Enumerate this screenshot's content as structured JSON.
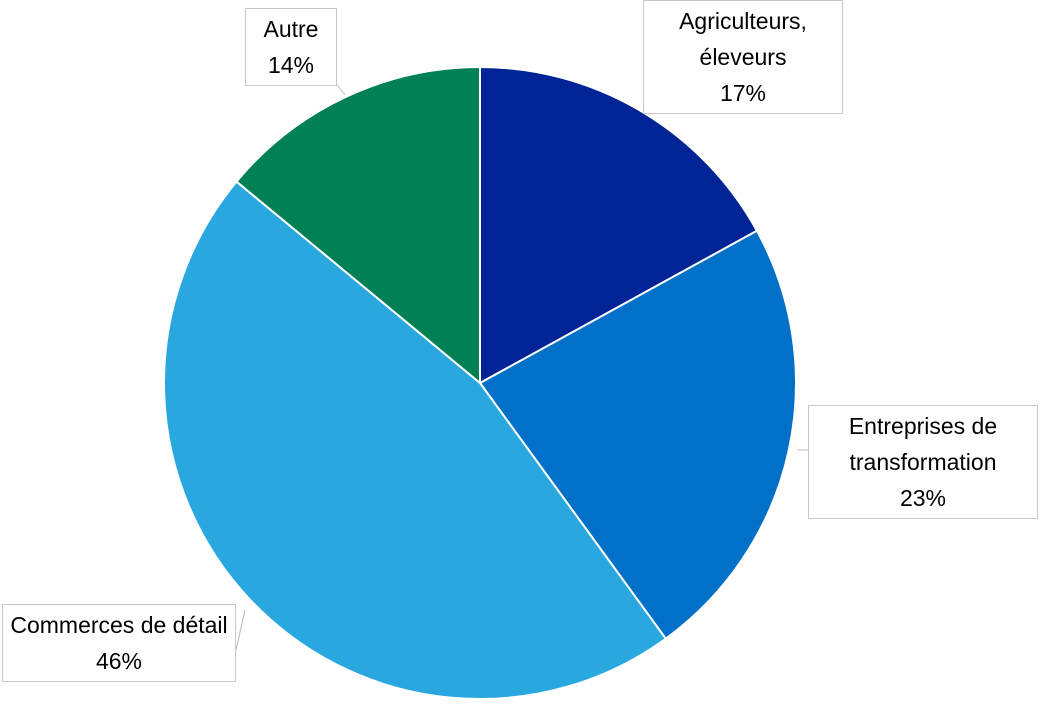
{
  "chart_data": {
    "type": "pie",
    "categories": [
      "Agriculteurs, éleveurs",
      "Entreprises de transformation",
      "Commerces de détail",
      "Autre"
    ],
    "values": [
      17,
      23,
      46,
      14
    ],
    "value_labels": [
      "17%",
      "23%",
      "46%",
      "14%"
    ],
    "colors": [
      "#002395",
      "#0070c8",
      "#29a8e0",
      "#008055"
    ]
  }
}
